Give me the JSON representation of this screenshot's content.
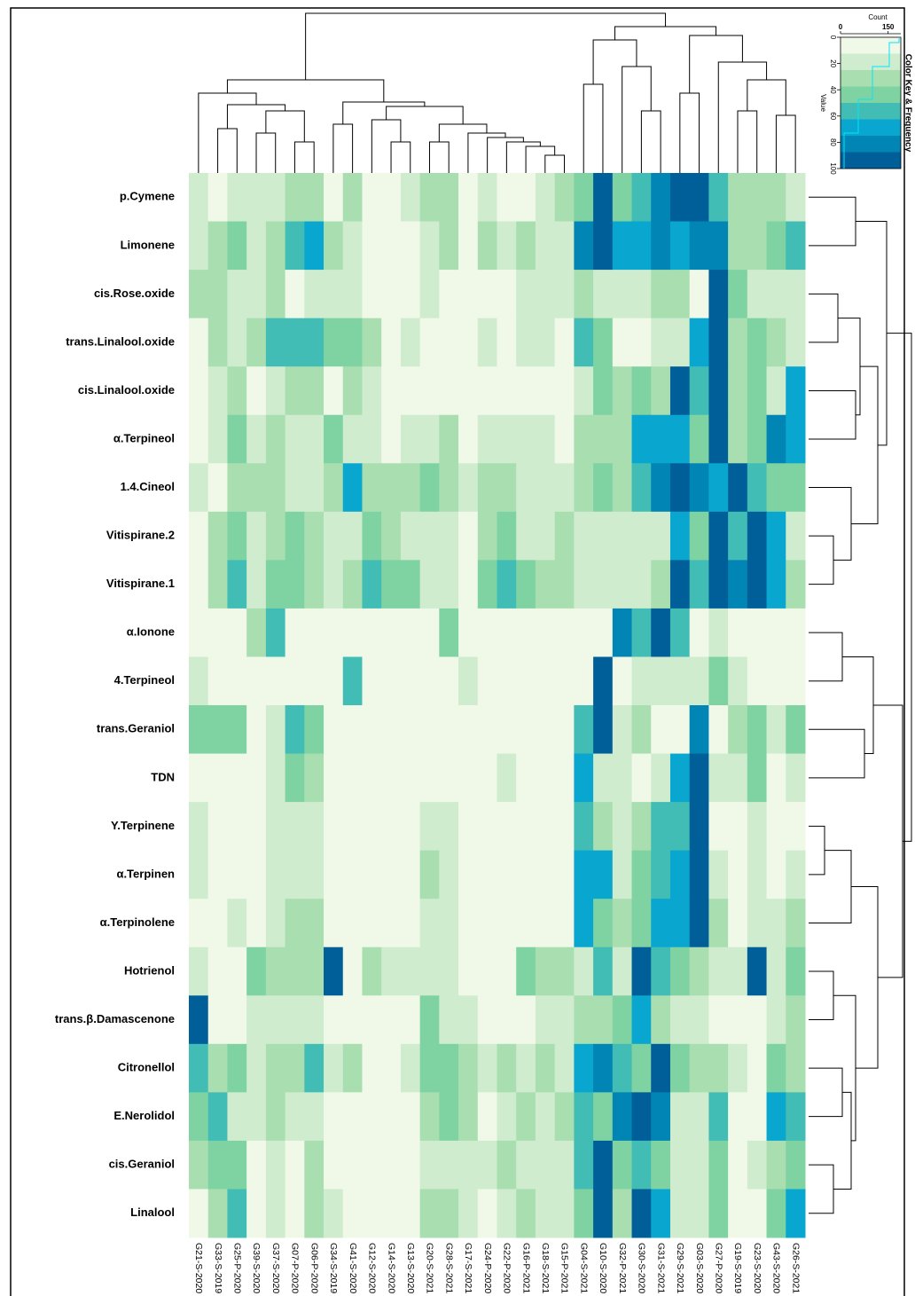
{
  "chart_data": {
    "type": "heatmap",
    "columns": [
      "G21-S-2020",
      "G33-S-2019",
      "G25-P-2020",
      "G39-S-2020",
      "G37-S-2020",
      "G07-P-2020",
      "G06-P-2020",
      "G34-S-2019",
      "G41-S-2020",
      "G12-S-2020",
      "G14-S-2020",
      "G13-S-2020",
      "G20-S-2021",
      "G28-S-2021",
      "G17-S-2021",
      "G24-P-2020",
      "G22-P-2020",
      "G16-P-2021",
      "G18-S-2021",
      "G15-P-2021",
      "G04-S-2021",
      "G10-S-2020",
      "G32-P-2021",
      "G30-S-2020",
      "G31-S-2021",
      "G29-S-2021",
      "G03-S-2020",
      "G27-P-2020",
      "G19-S-2019",
      "G23-S-2020",
      "G43-S-2020",
      "G26-S-2021"
    ],
    "rows": [
      "p.Cymene",
      "Limonene",
      "cis.Rose.oxide",
      "trans.Linalool.oxide",
      "cis.Linalool.oxide",
      "α.Terpineol",
      "1.4.Cineol",
      "Vitispirane.2",
      "Vitispirane.1",
      "α.Ionone",
      "4.Terpineol",
      "trans.Geraniol",
      "TDN",
      "Y.Terpinene",
      "α.Terpinen",
      "α.Terpinolene",
      "Hotrienol",
      "trans.β.Damascenone",
      "Citronellol",
      "E.Nerolidol",
      "cis.Geraniol",
      "Linalool"
    ],
    "values": [
      [
        19,
        6,
        19,
        19,
        19,
        31,
        31,
        6,
        31,
        6,
        6,
        19,
        31,
        31,
        6,
        19,
        6,
        6,
        19,
        31,
        44,
        94,
        44,
        56,
        81,
        94,
        94,
        56,
        31,
        31,
        31,
        19
      ],
      [
        19,
        31,
        44,
        19,
        31,
        56,
        69,
        31,
        19,
        6,
        6,
        6,
        19,
        31,
        6,
        31,
        19,
        31,
        19,
        19,
        81,
        94,
        69,
        69,
        81,
        69,
        81,
        81,
        31,
        31,
        44,
        56
      ],
      [
        31,
        31,
        19,
        19,
        31,
        6,
        19,
        19,
        19,
        6,
        6,
        6,
        19,
        6,
        6,
        6,
        6,
        19,
        19,
        19,
        31,
        19,
        19,
        19,
        31,
        31,
        6,
        94,
        44,
        19,
        19,
        19
      ],
      [
        6,
        31,
        19,
        31,
        56,
        56,
        56,
        44,
        44,
        31,
        6,
        19,
        6,
        6,
        6,
        19,
        6,
        19,
        19,
        6,
        56,
        44,
        6,
        6,
        19,
        19,
        69,
        94,
        31,
        44,
        31,
        19
      ],
      [
        6,
        19,
        31,
        6,
        19,
        31,
        31,
        6,
        31,
        19,
        6,
        6,
        6,
        6,
        6,
        6,
        6,
        6,
        6,
        6,
        19,
        44,
        31,
        44,
        31,
        94,
        56,
        94,
        31,
        44,
        19,
        69
      ],
      [
        6,
        19,
        44,
        19,
        31,
        19,
        19,
        44,
        19,
        19,
        6,
        19,
        19,
        31,
        6,
        19,
        19,
        19,
        19,
        6,
        31,
        31,
        31,
        69,
        69,
        69,
        44,
        94,
        31,
        44,
        81,
        69
      ],
      [
        19,
        6,
        31,
        31,
        31,
        19,
        19,
        31,
        69,
        31,
        31,
        31,
        44,
        31,
        19,
        31,
        31,
        19,
        19,
        19,
        31,
        44,
        31,
        56,
        81,
        94,
        81,
        69,
        94,
        56,
        44,
        44
      ],
      [
        6,
        31,
        44,
        19,
        31,
        44,
        31,
        19,
        19,
        44,
        31,
        19,
        19,
        19,
        6,
        31,
        44,
        19,
        19,
        31,
        19,
        19,
        19,
        19,
        19,
        69,
        44,
        94,
        56,
        94,
        69,
        19
      ],
      [
        6,
        31,
        56,
        19,
        44,
        44,
        31,
        19,
        31,
        56,
        44,
        44,
        19,
        19,
        6,
        44,
        56,
        44,
        31,
        31,
        19,
        19,
        19,
        19,
        31,
        94,
        56,
        94,
        81,
        94,
        69,
        31
      ],
      [
        6,
        6,
        6,
        31,
        56,
        6,
        6,
        6,
        6,
        6,
        6,
        6,
        6,
        44,
        6,
        6,
        6,
        6,
        6,
        6,
        6,
        6,
        81,
        56,
        94,
        56,
        6,
        19,
        6,
        6,
        6,
        6
      ],
      [
        19,
        6,
        6,
        6,
        6,
        6,
        6,
        6,
        56,
        6,
        6,
        6,
        6,
        6,
        19,
        6,
        6,
        6,
        6,
        6,
        6,
        94,
        6,
        19,
        19,
        19,
        19,
        44,
        19,
        6,
        6,
        6
      ],
      [
        44,
        44,
        44,
        6,
        19,
        56,
        44,
        6,
        6,
        6,
        6,
        6,
        6,
        6,
        6,
        6,
        6,
        6,
        6,
        6,
        56,
        94,
        19,
        31,
        6,
        6,
        81,
        6,
        31,
        44,
        19,
        44
      ],
      [
        6,
        6,
        6,
        6,
        19,
        44,
        31,
        6,
        6,
        6,
        6,
        6,
        6,
        6,
        6,
        6,
        19,
        6,
        6,
        6,
        69,
        19,
        19,
        6,
        19,
        69,
        94,
        19,
        19,
        44,
        6,
        19
      ],
      [
        19,
        6,
        6,
        6,
        19,
        19,
        19,
        6,
        6,
        6,
        6,
        6,
        19,
        19,
        6,
        6,
        6,
        6,
        6,
        6,
        56,
        31,
        19,
        31,
        56,
        56,
        94,
        6,
        6,
        19,
        6,
        6
      ],
      [
        19,
        6,
        6,
        6,
        19,
        19,
        19,
        6,
        6,
        6,
        6,
        6,
        31,
        19,
        6,
        6,
        6,
        6,
        6,
        6,
        69,
        69,
        19,
        44,
        56,
        69,
        94,
        19,
        6,
        19,
        6,
        19
      ],
      [
        6,
        6,
        19,
        6,
        19,
        31,
        31,
        6,
        6,
        6,
        6,
        6,
        19,
        19,
        6,
        6,
        6,
        6,
        6,
        6,
        69,
        44,
        31,
        44,
        69,
        69,
        94,
        31,
        6,
        19,
        19,
        31
      ],
      [
        19,
        6,
        6,
        44,
        31,
        31,
        31,
        94,
        6,
        31,
        19,
        19,
        19,
        19,
        6,
        6,
        6,
        44,
        31,
        31,
        19,
        56,
        19,
        94,
        56,
        44,
        31,
        19,
        19,
        94,
        19,
        44
      ],
      [
        94,
        6,
        6,
        19,
        19,
        19,
        19,
        6,
        6,
        6,
        6,
        6,
        44,
        19,
        19,
        6,
        6,
        6,
        19,
        19,
        31,
        31,
        44,
        69,
        31,
        19,
        19,
        6,
        6,
        6,
        19,
        31
      ],
      [
        56,
        31,
        44,
        19,
        31,
        31,
        56,
        19,
        31,
        6,
        6,
        19,
        44,
        44,
        31,
        19,
        31,
        19,
        31,
        19,
        69,
        81,
        56,
        44,
        94,
        44,
        31,
        31,
        19,
        6,
        44,
        31
      ],
      [
        44,
        56,
        19,
        19,
        31,
        19,
        19,
        6,
        6,
        6,
        6,
        6,
        31,
        44,
        31,
        6,
        19,
        31,
        19,
        31,
        56,
        44,
        81,
        94,
        81,
        19,
        19,
        56,
        6,
        6,
        69,
        56
      ],
      [
        31,
        44,
        44,
        6,
        19,
        6,
        31,
        6,
        6,
        6,
        6,
        6,
        19,
        19,
        19,
        19,
        31,
        19,
        19,
        19,
        56,
        94,
        44,
        56,
        44,
        19,
        19,
        44,
        6,
        19,
        31,
        44
      ],
      [
        6,
        31,
        56,
        6,
        19,
        6,
        31,
        19,
        6,
        6,
        6,
        6,
        31,
        31,
        19,
        6,
        19,
        31,
        19,
        19,
        44,
        94,
        31,
        94,
        69,
        19,
        19,
        44,
        6,
        6,
        44,
        69
      ]
    ],
    "colors": [
      "#f0f9e8",
      "#cfeccf",
      "#a9dfb0",
      "#7fd3a2",
      "#42bdb5",
      "#09a7cf",
      "#0085b5",
      "#005f99"
    ],
    "zlim": [
      0,
      100
    ],
    "color_key": {
      "title": "Color Key & Frequency",
      "value_label": "Value",
      "count_label": "Count",
      "value_ticks": [
        0,
        20,
        40,
        60,
        80,
        100
      ],
      "count_ticks": [
        0,
        150
      ],
      "count_lim": [
        0,
        190
      ]
    }
  }
}
